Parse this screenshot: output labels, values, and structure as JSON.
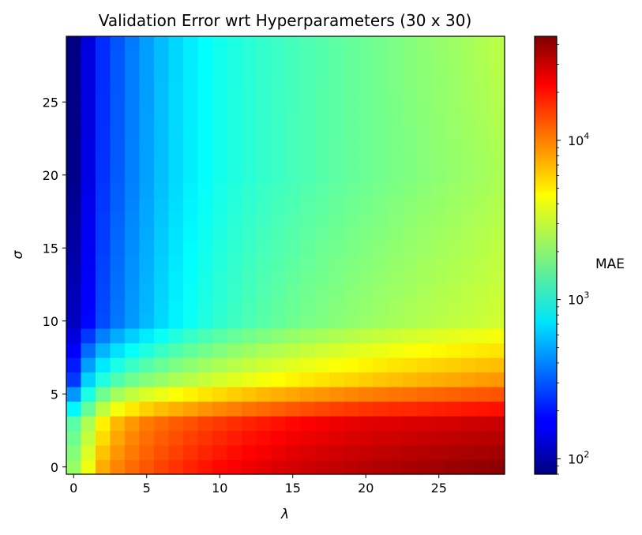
{
  "chart_data": {
    "type": "heatmap",
    "title": "Validation Error wrt Hyperparameters (30 x 30)",
    "xlabel": "λ",
    "ylabel": "σ",
    "grid_size": [
      30,
      30
    ],
    "x": [
      0,
      1,
      2,
      3,
      4,
      5,
      6,
      7,
      8,
      9,
      10,
      11,
      12,
      13,
      14,
      15,
      16,
      17,
      18,
      19,
      20,
      21,
      22,
      23,
      24,
      25,
      26,
      27,
      28,
      29
    ],
    "y": [
      0,
      1,
      2,
      3,
      4,
      5,
      6,
      7,
      8,
      9,
      10,
      11,
      12,
      13,
      14,
      15,
      16,
      17,
      18,
      19,
      20,
      21,
      22,
      23,
      24,
      25,
      26,
      27,
      28,
      29
    ],
    "xlim": [
      -0.5,
      29.5
    ],
    "ylim": [
      -0.5,
      29.5
    ],
    "xticks": [
      0,
      5,
      10,
      15,
      20,
      25
    ],
    "yticks": [
      0,
      5,
      10,
      15,
      20,
      25
    ],
    "colorscale": "jet",
    "colorbar": {
      "label": "MAE",
      "scale": "log",
      "range": [
        80,
        45000
      ],
      "major_ticks": [
        100,
        1000,
        10000
      ],
      "major_tick_labels": [
        {
          "base": "10",
          "exp": "2"
        },
        {
          "base": "10",
          "exp": "3"
        },
        {
          "base": "10",
          "exp": "4"
        }
      ]
    },
    "value_model": {
      "description": "Approximate MAE per cell read off the color scale",
      "rows_estimated_mae": {
        "0": [
          2200,
          3800,
          7000,
          9000,
          10500,
          12000,
          13500,
          15000,
          16500,
          18000,
          19500,
          21000,
          22500,
          24000,
          25500,
          27000,
          28000,
          29000,
          30000,
          31000,
          32000,
          33000,
          34000,
          35000,
          36000,
          37000,
          38000,
          39000,
          40000,
          41000
        ],
        "3": [
          1500,
          2500,
          4500,
          6500,
          8000,
          9500,
          10500,
          11500,
          12500,
          13500,
          14500,
          15500,
          16500,
          17500,
          18500,
          19500,
          20500,
          21500,
          22500,
          23500,
          24000,
          24500,
          25000,
          25500,
          26000,
          26500,
          27000,
          27500,
          28000,
          28500
        ],
        "6": [
          250,
          650,
          1050,
          1400,
          1700,
          1950,
          2200,
          2450,
          2700,
          2950,
          3200,
          3450,
          3700,
          3950,
          4200,
          4450,
          4700,
          4950,
          5200,
          5450,
          5700,
          5950,
          6200,
          6450,
          6700,
          6950,
          7200,
          7450,
          7700,
          7950
        ],
        "10": [
          120,
          180,
          280,
          370,
          460,
          560,
          680,
          800,
          920,
          1040,
          1150,
          1260,
          1370,
          1480,
          1590,
          1700,
          1800,
          1900,
          2000,
          2100,
          2200,
          2300,
          2400,
          2500,
          2600,
          2700,
          2800,
          2900,
          3000,
          3100
        ],
        "20": [
          85,
          150,
          240,
          310,
          390,
          480,
          580,
          680,
          780,
          870,
          960,
          1040,
          1110,
          1180,
          1250,
          1320,
          1390,
          1460,
          1530,
          1600,
          1670,
          1740,
          1820,
          1900,
          1980,
          2060,
          2150,
          2250,
          2350,
          2450
        ],
        "29": [
          82,
          145,
          230,
          300,
          380,
          470,
          570,
          670,
          770,
          860,
          950,
          1030,
          1100,
          1170,
          1240,
          1310,
          1380,
          1450,
          1520,
          1600,
          1680,
          1760,
          1850,
          1950,
          2050,
          2150,
          2250,
          2400,
          2550,
          2700
        ]
      }
    }
  }
}
